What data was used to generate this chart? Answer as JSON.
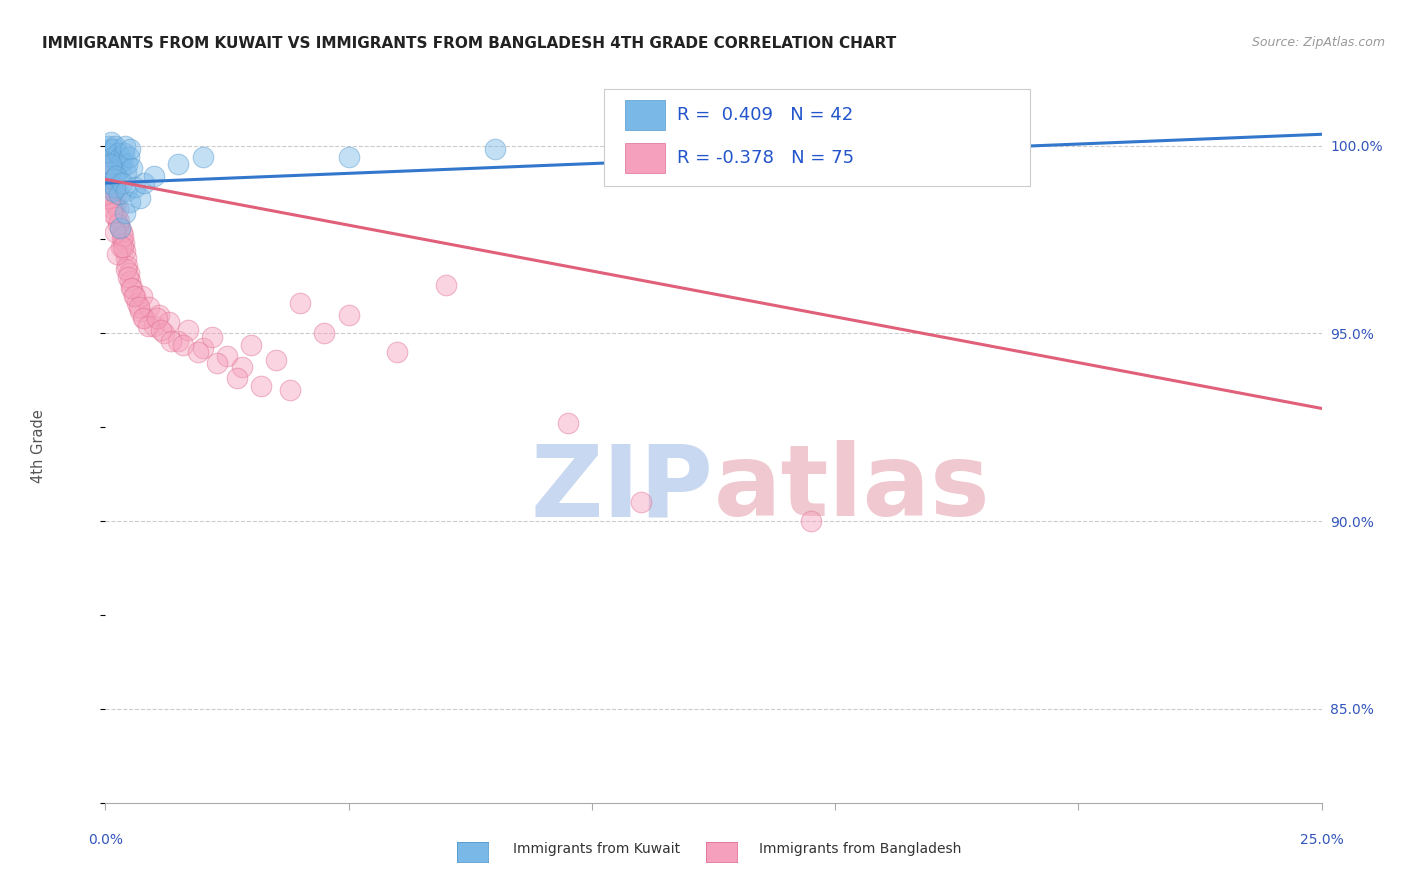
{
  "title": "IMMIGRANTS FROM KUWAIT VS IMMIGRANTS FROM BANGLADESH 4TH GRADE CORRELATION CHART",
  "source": "Source: ZipAtlas.com",
  "ylabel": "4th Grade",
  "xlim": [
    0.0,
    25.0
  ],
  "ylim": [
    82.5,
    101.5
  ],
  "yticks": [
    85.0,
    90.0,
    95.0,
    100.0
  ],
  "ytick_labels": [
    "85.0%",
    "90.0%",
    "95.0%",
    "100.0%"
  ],
  "kuwait_R": 0.409,
  "kuwait_N": 42,
  "bangladesh_R": -0.378,
  "bangladesh_N": 75,
  "kuwait_color": "#7ab8e8",
  "kuwait_edge": "#5599cc",
  "kuwait_line_color": "#3377cc",
  "bangladesh_color": "#f5a0bc",
  "bangladesh_edge": "#e07090",
  "bangladesh_line_color": "#e0607a",
  "watermark_zip_color": "#c8d8f0",
  "watermark_atlas_color": "#f0c8d0",
  "background": "#ffffff",
  "kuwait_line_x0": 0.0,
  "kuwait_line_y0": 99.0,
  "kuwait_line_x1": 25.0,
  "kuwait_line_y1": 100.3,
  "bangladesh_line_x0": 0.0,
  "bangladesh_line_y0": 99.1,
  "bangladesh_line_x1": 25.0,
  "bangladesh_line_y1": 93.0,
  "kuwait_scatter_x": [
    0.05,
    0.08,
    0.1,
    0.12,
    0.15,
    0.18,
    0.2,
    0.22,
    0.25,
    0.28,
    0.3,
    0.32,
    0.35,
    0.38,
    0.4,
    0.42,
    0.45,
    0.48,
    0.5,
    0.55,
    0.05,
    0.08,
    0.1,
    0.12,
    0.15,
    0.18,
    0.2,
    0.22,
    0.28,
    0.35,
    0.42,
    0.5,
    0.6,
    0.7,
    0.8,
    1.0,
    1.5,
    2.0,
    0.3,
    0.4,
    5.0,
    8.0
  ],
  "kuwait_scatter_y": [
    100.0,
    99.8,
    99.9,
    100.1,
    99.7,
    99.9,
    100.0,
    99.6,
    99.8,
    99.5,
    99.7,
    99.4,
    99.6,
    99.8,
    100.0,
    99.3,
    99.5,
    99.7,
    99.9,
    99.4,
    99.2,
    99.0,
    99.3,
    99.5,
    98.8,
    99.1,
    98.9,
    99.2,
    98.7,
    99.0,
    98.8,
    98.5,
    98.9,
    98.6,
    99.0,
    99.2,
    99.5,
    99.7,
    97.8,
    98.2,
    99.7,
    99.9
  ],
  "bangladesh_scatter_x": [
    0.03,
    0.05,
    0.07,
    0.1,
    0.12,
    0.15,
    0.18,
    0.2,
    0.22,
    0.25,
    0.28,
    0.3,
    0.33,
    0.35,
    0.38,
    0.4,
    0.43,
    0.45,
    0.48,
    0.5,
    0.55,
    0.6,
    0.65,
    0.7,
    0.75,
    0.8,
    0.9,
    1.0,
    1.1,
    1.2,
    1.3,
    1.5,
    1.7,
    2.0,
    2.2,
    2.5,
    2.8,
    3.0,
    3.5,
    4.0,
    4.5,
    5.0,
    6.0,
    7.0,
    9.5,
    0.07,
    0.11,
    0.16,
    0.21,
    0.26,
    0.32,
    0.37,
    0.42,
    0.47,
    0.52,
    0.58,
    0.68,
    0.78,
    0.88,
    1.05,
    1.15,
    1.35,
    1.6,
    1.9,
    2.3,
    2.7,
    3.2,
    3.8,
    11.0,
    14.5,
    0.08,
    0.14,
    0.19,
    0.24,
    0.36
  ],
  "bangladesh_scatter_y": [
    99.5,
    99.2,
    98.8,
    99.0,
    99.3,
    98.5,
    98.8,
    98.4,
    98.7,
    98.3,
    98.0,
    97.8,
    97.5,
    97.7,
    97.4,
    97.2,
    97.0,
    96.8,
    96.6,
    96.4,
    96.2,
    96.0,
    95.8,
    95.6,
    96.0,
    95.4,
    95.7,
    95.2,
    95.5,
    95.0,
    95.3,
    94.8,
    95.1,
    94.6,
    94.9,
    94.4,
    94.1,
    94.7,
    94.3,
    95.8,
    95.0,
    95.5,
    94.5,
    96.3,
    92.6,
    99.4,
    98.9,
    98.3,
    98.1,
    97.9,
    97.3,
    97.6,
    96.7,
    96.5,
    96.2,
    96.0,
    95.7,
    95.4,
    95.2,
    95.4,
    95.1,
    94.8,
    94.7,
    94.5,
    94.2,
    93.8,
    93.6,
    93.5,
    90.5,
    90.0,
    98.6,
    98.2,
    97.7,
    97.1,
    97.3
  ]
}
